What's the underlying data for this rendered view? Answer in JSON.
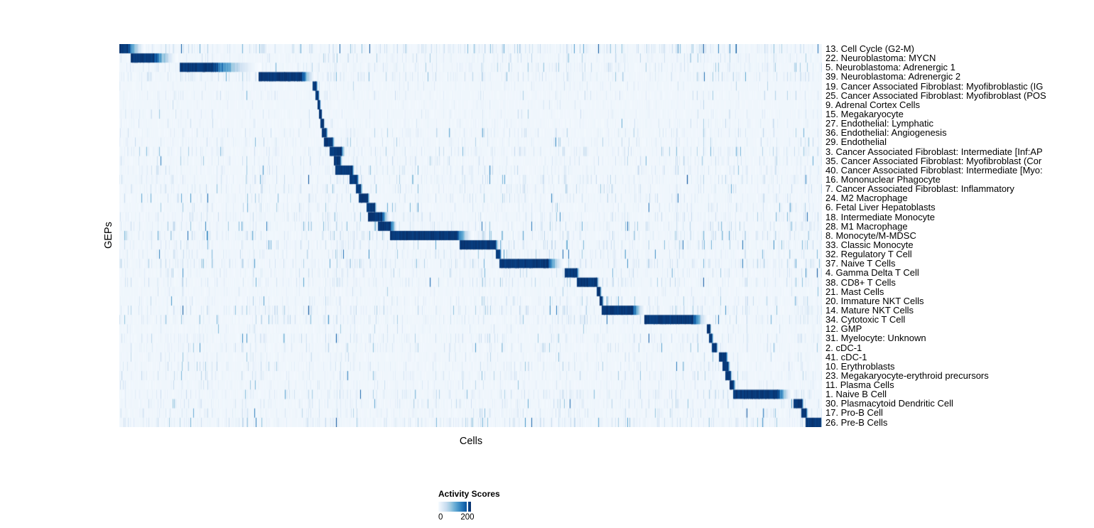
{
  "chart_data": {
    "type": "heatmap",
    "title": "",
    "xlabel": "Cells",
    "ylabel": "GEPs",
    "legend": {
      "title": "Activity Scores",
      "min_label": "0",
      "tick_label": "200",
      "tick_frac": 0.891,
      "min_value": 0,
      "tick_value": 200
    },
    "colormap": [
      [
        0.0,
        "#f7fbff"
      ],
      [
        0.125,
        "#deebf7"
      ],
      [
        0.25,
        "#c6dbef"
      ],
      [
        0.375,
        "#9ecae1"
      ],
      [
        0.5,
        "#6baed6"
      ],
      [
        0.625,
        "#4292c6"
      ],
      [
        0.75,
        "#2171b5"
      ],
      [
        0.875,
        "#08519c"
      ],
      [
        1.0,
        "#08306b"
      ]
    ],
    "rows": [
      {
        "label": "13. Cell Cycle (G2-M)",
        "block": [
          0.0,
          0.012,
          0.037
        ],
        "noise": 0.55
      },
      {
        "label": "22. Neuroblastoma: MYCN",
        "block": [
          0.017,
          0.049,
          0.083
        ],
        "noise": 0.28
      },
      {
        "label": "5. Neuroblastoma: Adrenergic 1",
        "block": [
          0.086,
          0.133,
          0.202
        ],
        "noise": 0.34
      },
      {
        "label": "39. Neuroblastoma: Adrenergic 2",
        "block": [
          0.199,
          0.26,
          0.279
        ],
        "noise": 0.4
      },
      {
        "label": "19. Cancer Associated Fibroblast: Myofibroblastic (IG",
        "block": [
          0.276,
          0.28,
          0.283
        ],
        "noise": 0.15
      },
      {
        "label": "25. Cancer Associated Fibroblast: Myofibroblast (POS",
        "block": [
          0.28,
          0.283,
          0.285
        ],
        "noise": 0.22
      },
      {
        "label": "9. Adrenal Cortex Cells",
        "block": [
          0.283,
          0.285,
          0.287
        ],
        "noise": 0.12
      },
      {
        "label": "15. Megakaryocyte",
        "block": [
          0.285,
          0.287,
          0.289
        ],
        "noise": 0.15
      },
      {
        "label": "27. Endothelial: Lymphatic",
        "block": [
          0.287,
          0.29,
          0.293
        ],
        "noise": 0.18
      },
      {
        "label": "36. Endothelial: Angiogenesis",
        "block": [
          0.289,
          0.294,
          0.297
        ],
        "noise": 0.24
      },
      {
        "label": "29. Endothelial",
        "block": [
          0.292,
          0.303,
          0.307
        ],
        "noise": 0.24
      },
      {
        "label": "3. Cancer Associated Fibroblast: Intermediate [Inf:AP",
        "block": [
          0.3,
          0.316,
          0.322
        ],
        "noise": 0.38
      },
      {
        "label": "35. Cancer Associated Fibroblast: Myofibroblast (Cor",
        "block": [
          0.306,
          0.314,
          0.318
        ],
        "noise": 0.28
      },
      {
        "label": "40. Cancer Associated Fibroblast: Intermediate [Myo:",
        "block": [
          0.308,
          0.331,
          0.335
        ],
        "noise": 0.32
      },
      {
        "label": "16. Mononuclear Phagocyte",
        "block": [
          0.328,
          0.338,
          0.342
        ],
        "noise": 0.34
      },
      {
        "label": "7. Cancer Associated Fibroblast: Inflammatory",
        "block": [
          0.337,
          0.343,
          0.347
        ],
        "noise": 0.32
      },
      {
        "label": "24. M2 Macrophage",
        "block": [
          0.341,
          0.353,
          0.357
        ],
        "noise": 0.32
      },
      {
        "label": "6. Fetal Liver Hepatoblasts",
        "block": [
          0.352,
          0.363,
          0.367
        ],
        "noise": 0.26
      },
      {
        "label": "18. Intermediate Monocyte",
        "block": [
          0.354,
          0.373,
          0.386
        ],
        "noise": 0.36
      },
      {
        "label": "28. M1 Macrophage",
        "block": [
          0.369,
          0.386,
          0.396
        ],
        "noise": 0.38
      },
      {
        "label": "8. Monocyte/M-MDSC",
        "block": [
          0.386,
          0.48,
          0.504
        ],
        "noise": 0.42
      },
      {
        "label": "33. Classic Monocyte",
        "block": [
          0.485,
          0.535,
          0.541
        ],
        "noise": 0.38
      },
      {
        "label": "32. Regulatory T Cell",
        "block": [
          0.536,
          0.541,
          0.545
        ],
        "noise": 0.32
      },
      {
        "label": "37. Naive T Cells",
        "block": [
          0.541,
          0.609,
          0.634
        ],
        "noise": 0.46
      },
      {
        "label": "4. Gamma Delta T Cell",
        "block": [
          0.634,
          0.651,
          0.656
        ],
        "noise": 0.32
      },
      {
        "label": "38. CD8+ T Cells",
        "block": [
          0.652,
          0.679,
          0.684
        ],
        "noise": 0.32
      },
      {
        "label": "21. Mast Cells",
        "block": [
          0.68,
          0.684,
          0.687
        ],
        "noise": 0.16
      },
      {
        "label": "20. Immature NKT Cells",
        "block": [
          0.684,
          0.687,
          0.69
        ],
        "noise": 0.28
      },
      {
        "label": "14. Mature NKT Cells",
        "block": [
          0.687,
          0.73,
          0.749
        ],
        "noise": 0.36
      },
      {
        "label": "34. Cytotoxic T Cell",
        "block": [
          0.748,
          0.816,
          0.839
        ],
        "noise": 0.32
      },
      {
        "label": "12. GMP",
        "block": [
          0.837,
          0.84,
          0.843
        ],
        "noise": 0.16
      },
      {
        "label": "31. Myelocyte: Unknown",
        "block": [
          0.84,
          0.843,
          0.846
        ],
        "noise": 0.32
      },
      {
        "label": "2. cDC-1",
        "block": [
          0.844,
          0.849,
          0.853
        ],
        "noise": 0.26
      },
      {
        "label": "41. cDC-1",
        "block": [
          0.854,
          0.863,
          0.867
        ],
        "noise": 0.2
      },
      {
        "label": "10. Erythroblasts",
        "block": [
          0.859,
          0.866,
          0.87
        ],
        "noise": 0.26
      },
      {
        "label": "23. Megakaryocyte-erythroid precursors",
        "block": [
          0.863,
          0.869,
          0.873
        ],
        "noise": 0.3
      },
      {
        "label": "11. Plasma Cells",
        "block": [
          0.869,
          0.874,
          0.878
        ],
        "noise": 0.22
      },
      {
        "label": "1. Naive B Cell",
        "block": [
          0.874,
          0.937,
          0.958
        ],
        "noise": 0.36
      },
      {
        "label": "30. Plasmacytoid Dendritic Cell",
        "block": [
          0.96,
          0.971,
          0.975
        ],
        "noise": 0.3
      },
      {
        "label": "17. Pro-B Cell",
        "block": [
          0.971,
          0.977,
          0.981
        ],
        "noise": 0.36
      },
      {
        "label": "26. Pre-B Cells",
        "block": [
          0.977,
          0.998,
          1.0
        ],
        "noise": 0.42
      }
    ]
  }
}
